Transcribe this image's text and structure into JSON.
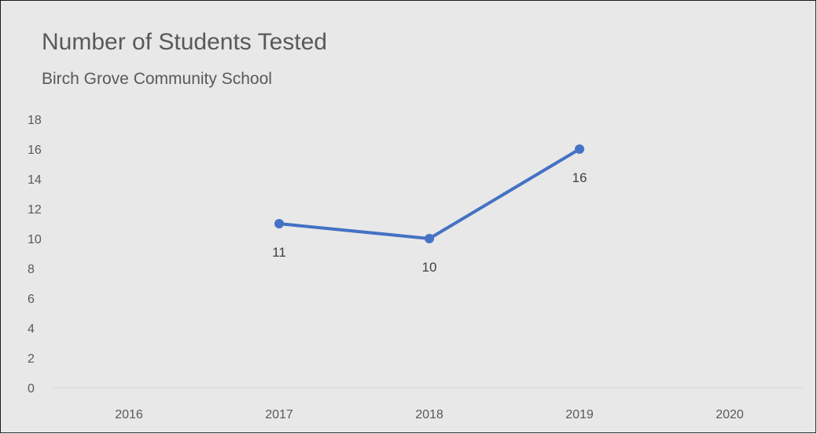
{
  "chart_data": {
    "type": "line",
    "title": "Number of Students Tested",
    "subtitle": "Birch Grove Community School",
    "categories": [
      "2016",
      "2017",
      "2018",
      "2019",
      "2020"
    ],
    "series": [
      {
        "values": [
          null,
          11,
          10,
          16,
          null
        ]
      }
    ],
    "data_labels": [
      "",
      "11",
      "10",
      "16",
      ""
    ],
    "yticks": [
      0,
      2,
      4,
      6,
      8,
      10,
      12,
      14,
      16,
      18
    ],
    "ylim": [
      0,
      18
    ],
    "grid": false,
    "legend": "none",
    "colors": {
      "line": "#4472c4",
      "background": "#e8e8e8",
      "text": "#595959",
      "axis": "#d9d9d9",
      "border": "#1a1a1a"
    }
  }
}
